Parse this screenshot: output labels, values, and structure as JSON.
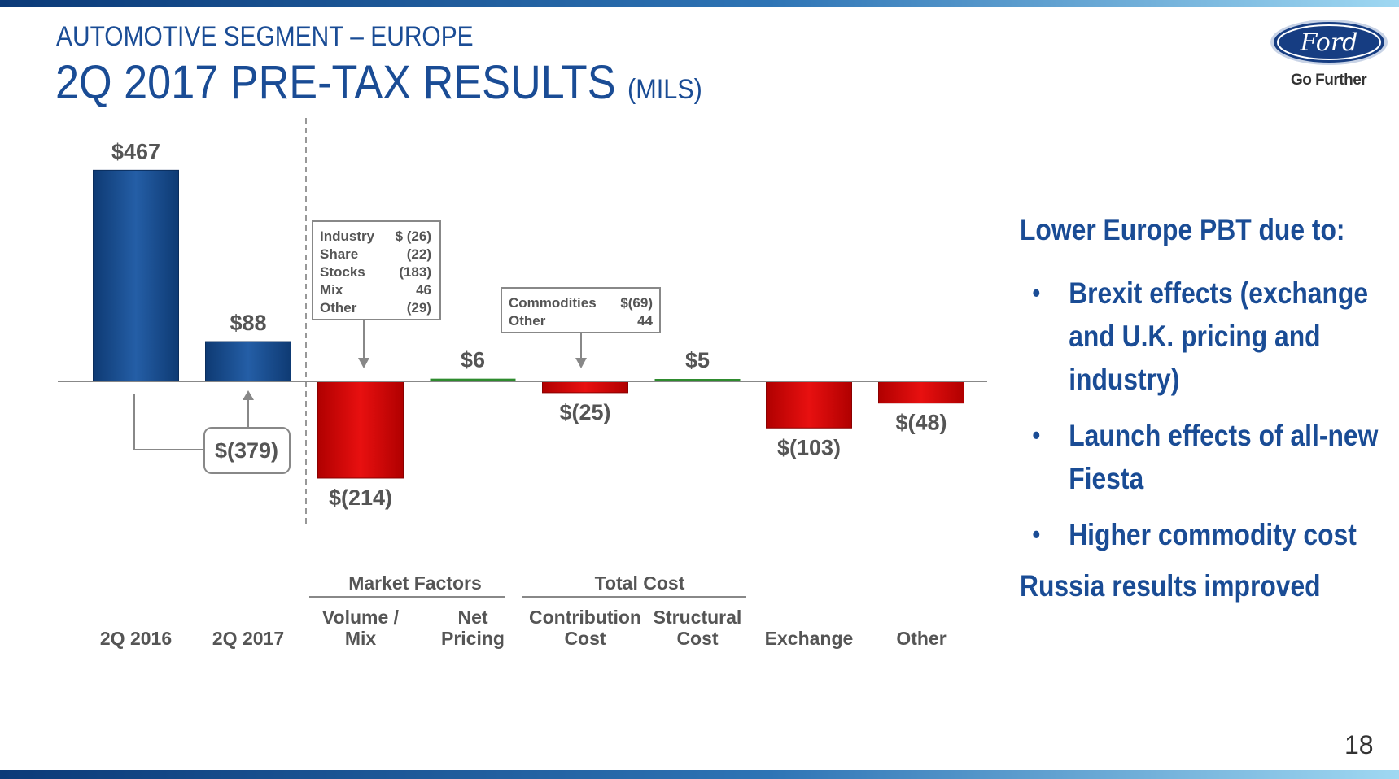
{
  "header": {
    "section": "AUTOMOTIVE SEGMENT – EUROPE",
    "title": "2Q 2017 PRE-TAX RESULTS",
    "unit": "(MILS)"
  },
  "logo": {
    "brand": "Ford",
    "tagline": "Go Further"
  },
  "page_number": "18",
  "colors": {
    "positive_bar": "#1b4e8f",
    "negative_bar": "#d40000",
    "small_positive": "#2e8b2e",
    "title": "#1a4c95"
  },
  "chart_data": {
    "type": "bar",
    "subtype": "waterfall",
    "categories": [
      "2Q 2016",
      "2Q 2017",
      "Volume / Mix",
      "Net Pricing",
      "Contribution Cost",
      "Structural Cost",
      "Exchange",
      "Other"
    ],
    "values": [
      467,
      88,
      -214,
      6,
      -25,
      5,
      -103,
      -48
    ],
    "value_labels": [
      "$467",
      "$88",
      "$(214)",
      "$6",
      "$(25)",
      "$5",
      "$(103)",
      "$(48)"
    ],
    "groups": [
      {
        "label": "Market Factors",
        "categories": [
          "Volume / Mix",
          "Net Pricing"
        ]
      },
      {
        "label": "Total Cost",
        "categories": [
          "Contribution Cost",
          "Structural Cost"
        ]
      }
    ],
    "change_callout": "$(379)",
    "breakdowns": [
      {
        "category": "Volume / Mix",
        "rows": [
          [
            "Industry",
            "$ (26)"
          ],
          [
            "Share",
            "(22)"
          ],
          [
            "Stocks",
            "(183)"
          ],
          [
            "Mix",
            "46"
          ],
          [
            "Other",
            "(29)"
          ]
        ]
      },
      {
        "category": "Contribution Cost",
        "rows": [
          [
            "Commodities",
            "$(69)"
          ],
          [
            "Other",
            "44"
          ]
        ]
      }
    ]
  },
  "commentary": {
    "heading": "Lower Europe PBT due to:",
    "bullets": [
      "Brexit  effects (exchange and U.K. pricing and industry)",
      "Launch effects of all-new Fiesta",
      "Higher commodity cost"
    ],
    "footer": "Russia results improved"
  }
}
